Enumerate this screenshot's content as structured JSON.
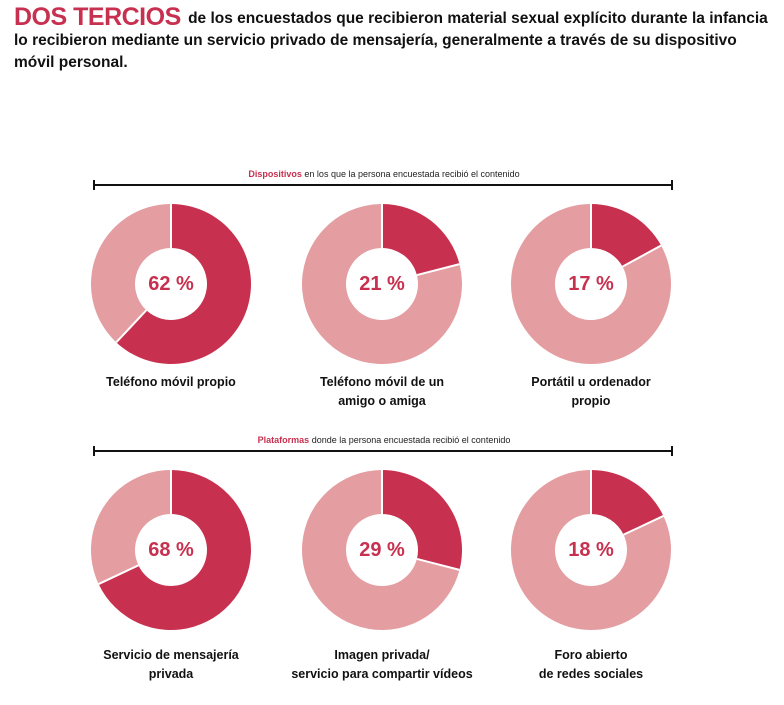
{
  "header": {
    "highlight": "DOS TERCIOS",
    "text": "de los encuestados que recibieron material sexual explícito durante la infancia lo recibieron mediante un servicio privado de mensajería, generalmente a través de su dispositivo móvil personal."
  },
  "colors": {
    "accent": "#c7314f",
    "remainder": "#e49da1",
    "text": "#111111"
  },
  "sections": [
    {
      "strong": "Dispositivos",
      "text": " en los que la persona encuestada recibió el contenido"
    },
    {
      "strong": "Plataformas",
      "text": " donde la persona encuestada recibió el contenido"
    }
  ],
  "chart_data": [
    {
      "type": "pie",
      "title": "Dispositivos en los que la persona encuestada recibió el contenido",
      "categories": [
        "Teléfono móvil propio",
        "Teléfono móvil de un amigo o amiga",
        "Portátil u ordenador propio"
      ],
      "values": [
        62,
        21,
        17
      ],
      "value_labels": [
        "62 %",
        "21 %",
        "17 %"
      ],
      "captions": [
        [
          "Teléfono móvil propio"
        ],
        [
          "Teléfono móvil de un",
          "amigo o amiga"
        ],
        [
          "Portátil u ordenador",
          "propio"
        ]
      ]
    },
    {
      "type": "pie",
      "title": "Plataformas donde la persona encuestada recibió el contenido",
      "categories": [
        "Servicio de mensajería privada",
        "Imagen privada/ servicio para compartir vídeos",
        "Foro abierto de redes sociales"
      ],
      "values": [
        68,
        29,
        18
      ],
      "value_labels": [
        "68 %",
        "29 %",
        "18 %"
      ],
      "captions": [
        [
          "Servicio de mensajería",
          "privada"
        ],
        [
          "Imagen privada/",
          "servicio para compartir vídeos"
        ],
        [
          "Foro abierto",
          "de redes sociales"
        ]
      ]
    }
  ]
}
